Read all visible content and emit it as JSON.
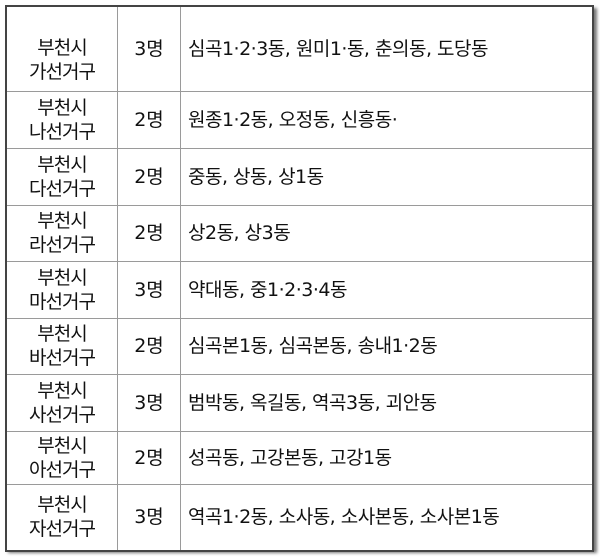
{
  "rows": [
    {
      "city": "부천시",
      "district": "가선거구",
      "seats": "3명",
      "dongs": "심곡1·2·3동, 원미1·동, 춘의동, 도당동"
    },
    {
      "city": "부천시",
      "district": "나선거구",
      "seats": "2명",
      "dongs": "원종1·2동, 오정동, 신흥동·"
    },
    {
      "city": "부천시",
      "district": "다선거구",
      "seats": "2명",
      "dongs": "중동, 상동, 상1동"
    },
    {
      "city": "부천시",
      "district": "라선거구",
      "seats": "2명",
      "dongs": "상2동, 상3동"
    },
    {
      "city": "부천시",
      "district": "마선거구",
      "seats": "3명",
      "dongs": "약대동, 중1·2·3·4동"
    },
    {
      "city": "부천시",
      "district": "바선거구",
      "seats": "2명",
      "dongs": "심곡본1동, 심곡본동, 송내1·2동"
    },
    {
      "city": "부천시",
      "district": "사선거구",
      "seats": "3명",
      "dongs": "범박동, 옥길동, 역곡3동, 괴안동"
    },
    {
      "city": "부천시",
      "district": "아선거구",
      "seats": "2명",
      "dongs": "성곡동, 고강본동, 고강1동"
    },
    {
      "city": "부천시",
      "district": "자선거구",
      "seats": "3명",
      "dongs": "역곡1·2동, 소사동, 소사본동, 소사본1동"
    }
  ]
}
